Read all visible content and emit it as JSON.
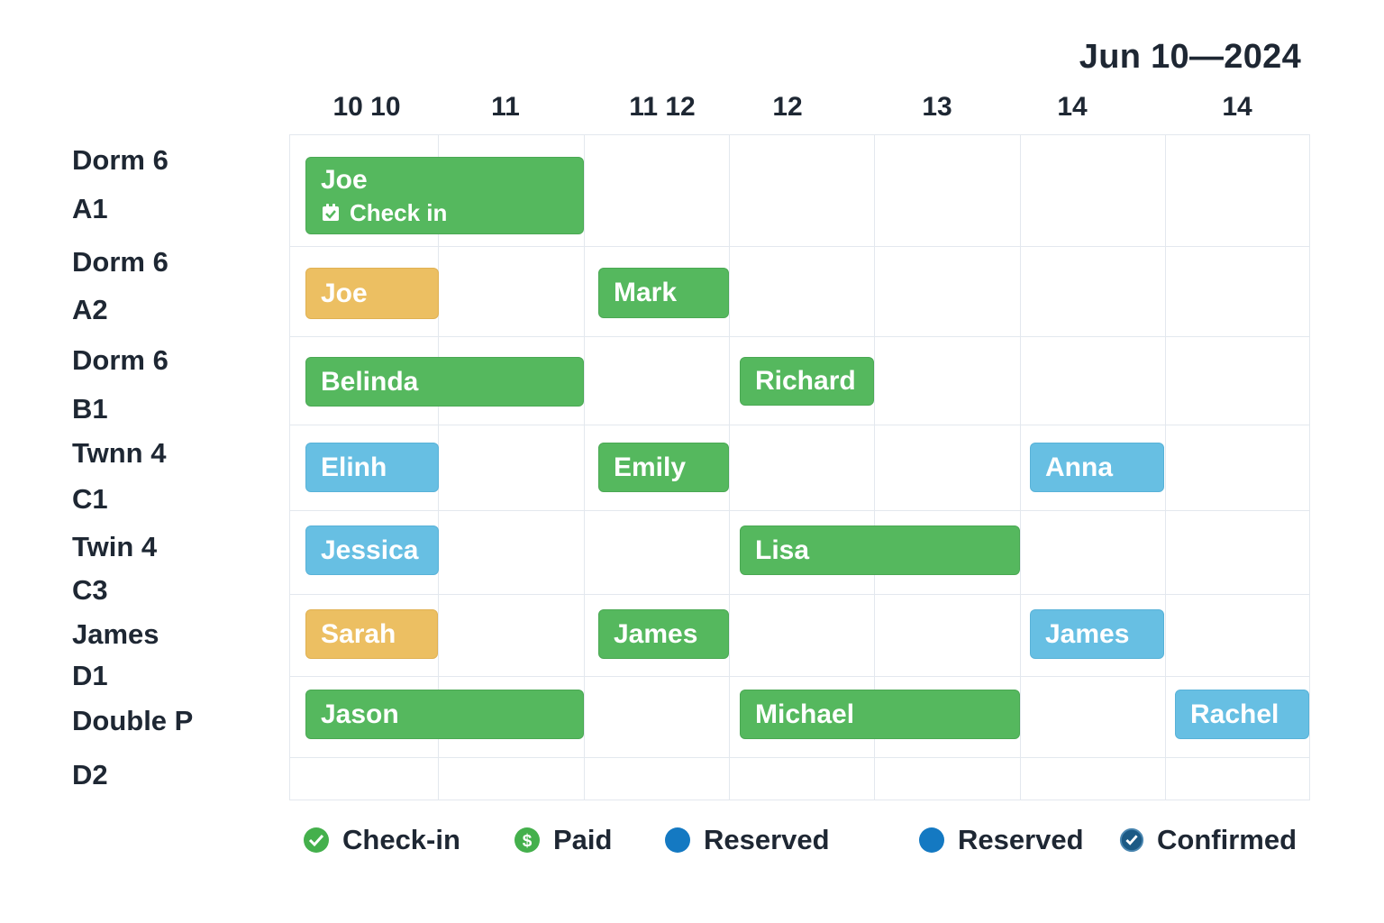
{
  "header": {
    "title": "Jun 10—2024"
  },
  "columns": [
    "10 10",
    "11",
    "11  12",
    "12",
    "13",
    "14",
    "14"
  ],
  "rows": [
    {
      "type": "Dorm 6",
      "room": "A1"
    },
    {
      "type": "Dorm 6",
      "room": "A2"
    },
    {
      "type": "Dorm 6",
      "room": "B1"
    },
    {
      "type": "Twnn 4",
      "room": "C1"
    },
    {
      "type": "Twin  4",
      "room": "C3"
    },
    {
      "type": "James",
      "room": "D1"
    },
    {
      "type": "Double P",
      "room": "D2"
    }
  ],
  "bookings": [
    {
      "guest": "Joe",
      "status": "Check in",
      "color": "#55b85e"
    },
    {
      "guest": "Joe",
      "color": "#ecbf62"
    },
    {
      "guest": "Mark",
      "color": "#55b85e"
    },
    {
      "guest": "Belinda",
      "color": "#55b85e"
    },
    {
      "guest": "Richard",
      "color": "#55b85e"
    },
    {
      "guest": "Elinh",
      "color": "#67bfe3"
    },
    {
      "guest": "Emily",
      "color": "#55b85e"
    },
    {
      "guest": "Anna",
      "color": "#67bfe3"
    },
    {
      "guest": "Jessica",
      "color": "#67bfe3"
    },
    {
      "guest": "Lisa",
      "color": "#55b85e"
    },
    {
      "guest": "Sarah",
      "color": "#ecbf62"
    },
    {
      "guest": "James",
      "color": "#55b85e"
    },
    {
      "guest": "James",
      "color": "#67bfe3"
    },
    {
      "guest": "Jason",
      "color": "#55b85e"
    },
    {
      "guest": "Michael",
      "color": "#55b85e"
    },
    {
      "guest": "Rachel",
      "color": "#67bfe3"
    }
  ],
  "legend": [
    {
      "label": "Check-in",
      "icon": "check-circle-icon",
      "color": "#44b04c"
    },
    {
      "label": "Paid",
      "icon": "dollar-circle-icon",
      "color": "#44b04c"
    },
    {
      "label": "Reserved",
      "icon": "dot-icon",
      "color": "#1479c2"
    },
    {
      "label": "Reserved",
      "icon": "dot-icon",
      "color": "#1479c2"
    },
    {
      "label": "Confirmed",
      "icon": "check-circle-icon",
      "color": "#1c5a85"
    }
  ]
}
